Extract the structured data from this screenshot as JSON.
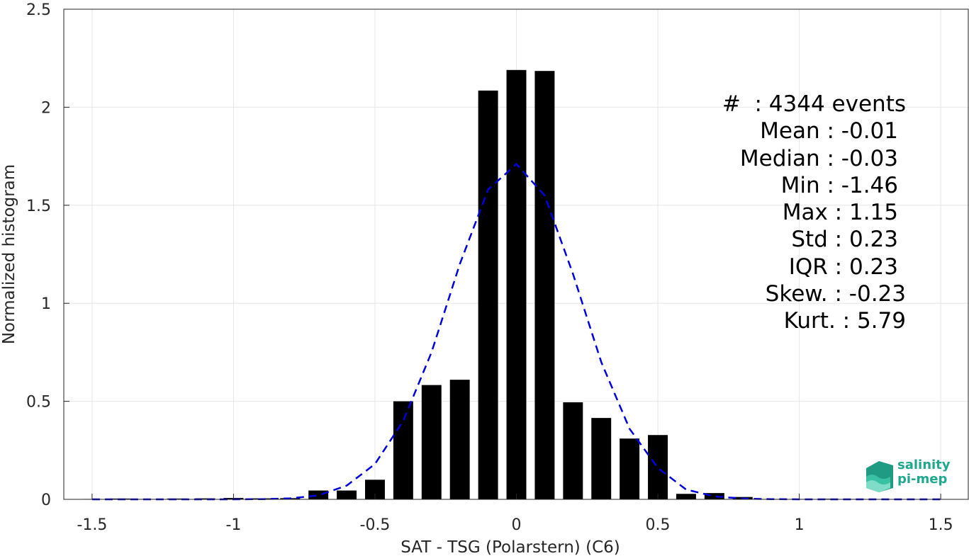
{
  "chart_data": {
    "type": "bar",
    "xlabel": "SAT - TSG (Polarstern) (C6)",
    "ylabel": "Normalized histogram",
    "xlim": [
      -1.6,
      1.6
    ],
    "ylim": [
      0,
      2.5
    ],
    "x_ticks": [
      -1.5,
      -1,
      -0.5,
      0,
      0.5,
      1,
      1.5
    ],
    "x_tick_labels": [
      "-1.5",
      "-1",
      "-0.5",
      "0",
      "0.5",
      "1",
      "1.5"
    ],
    "y_ticks": [
      0,
      0.5,
      1,
      1.5,
      2,
      2.5
    ],
    "y_tick_labels": [
      "0",
      "0.5",
      "1",
      "1.5",
      "2",
      "2.5"
    ],
    "grid": true,
    "bar_width": 0.07,
    "bars": {
      "x": [
        -1.5,
        -1.4,
        -1.3,
        -1.2,
        -1.1,
        -1.0,
        -0.9,
        -0.8,
        -0.7,
        -0.6,
        -0.5,
        -0.4,
        -0.3,
        -0.2,
        -0.1,
        0.0,
        0.1,
        0.2,
        0.3,
        0.4,
        0.5,
        0.6,
        0.7,
        0.8,
        0.9,
        1.0,
        1.1,
        1.2
      ],
      "values": [
        0.002,
        0.004,
        0.002,
        0.004,
        0.005,
        0.007,
        0.005,
        0.006,
        0.045,
        0.045,
        0.1,
        0.5,
        0.583,
        0.61,
        2.085,
        2.19,
        2.185,
        0.495,
        0.415,
        0.31,
        0.328,
        0.028,
        0.032,
        0.012,
        0.002,
        0.002,
        0.003,
        0.002
      ],
      "color": "#000000"
    },
    "fit_curve": {
      "style": "dashed",
      "color": "#0000dd",
      "x": [
        -1.5,
        -1.4,
        -1.3,
        -1.2,
        -1.1,
        -1.0,
        -0.9,
        -0.8,
        -0.7,
        -0.6,
        -0.5,
        -0.4,
        -0.3,
        -0.2,
        -0.1,
        0.0,
        0.1,
        0.2,
        0.3,
        0.4,
        0.5,
        0.6,
        0.7,
        0.8,
        0.9,
        1.0,
        1.1,
        1.2,
        1.3,
        1.4,
        1.5
      ],
      "y": [
        0.0,
        0.0,
        0.0,
        0.0,
        0.0,
        0.0,
        0.001,
        0.005,
        0.02,
        0.07,
        0.18,
        0.4,
        0.75,
        1.2,
        1.58,
        1.71,
        1.55,
        1.15,
        0.7,
        0.36,
        0.16,
        0.05,
        0.015,
        0.004,
        0.001,
        0.0,
        0.0,
        0.0,
        0.0,
        0.0,
        0.0
      ]
    },
    "annotations": [
      "#  : 4344 events",
      "Mean : -0.01",
      "Median : -0.03",
      "Min : -1.46",
      "Max : 1.15",
      "Std : 0.23",
      "IQR : 0.23",
      "Skew. : -0.23",
      "Kurt. : 5.79"
    ]
  },
  "logo": {
    "line1": "salinity",
    "line2": "pi-mep",
    "color": "#1fa88e"
  }
}
